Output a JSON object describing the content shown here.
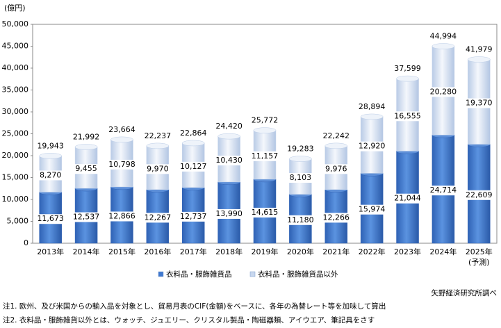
{
  "chart_data": {
    "type": "stacked-bar",
    "y_label": "(億円)",
    "categories": [
      "2013年",
      "2014年",
      "2015年",
      "2016年",
      "2017年",
      "2018年",
      "2019年",
      "2020年",
      "2021年",
      "2022年",
      "2023年",
      "2024年",
      "2025年"
    ],
    "forecast_note": "(予測)",
    "series": [
      {
        "name": "衣料品・服飾雑貨品",
        "color": "#3f78cf",
        "values": [
          11673,
          12537,
          12866,
          12267,
          12737,
          13990,
          14615,
          11180,
          12266,
          15974,
          21044,
          24714,
          22609
        ],
        "value_labels": [
          "11,673",
          "12,537",
          "12,866",
          "12,267",
          "12,737",
          "13,990",
          "14,615",
          "11,180",
          "12,266",
          "15,974",
          "21,044",
          "24,714",
          "22,609"
        ]
      },
      {
        "name": "衣料品・服飾雑貨品以外",
        "color": "#dce6f4",
        "values": [
          8270,
          9455,
          10798,
          9970,
          10127,
          10430,
          11157,
          8103,
          9976,
          12920,
          16555,
          20280,
          19370
        ],
        "value_labels": [
          "8,270",
          "9,455",
          "10,798",
          "9,970",
          "10,127",
          "10,430",
          "11,157",
          "8,103",
          "9,976",
          "12,920",
          "16,555",
          "20,280",
          "19,370"
        ]
      }
    ],
    "totals": {
      "values": [
        19943,
        21992,
        23664,
        22237,
        22864,
        24420,
        25772,
        19283,
        22242,
        28894,
        37599,
        44994,
        41979
      ],
      "value_labels": [
        "19,943",
        "21,992",
        "23,664",
        "22,237",
        "22,864",
        "24,420",
        "25,772",
        "19,283",
        "22,242",
        "28,894",
        "37,599",
        "44,994",
        "41,979"
      ]
    },
    "ylim": [
      0,
      50000
    ],
    "yticks": [
      0,
      {
        "value": 5000,
        "label": "5,000"
      },
      {
        "value": 10000,
        "label": "10,000"
      },
      {
        "value": 15000,
        "label": "15,000"
      },
      {
        "value": 20000,
        "label": "20,000"
      },
      {
        "value": 25000,
        "label": "25,000"
      },
      {
        "value": 30000,
        "label": "30,000"
      },
      {
        "value": 35000,
        "label": "35,000"
      },
      {
        "value": 40000,
        "label": "40,000"
      },
      {
        "value": 45000,
        "label": "45,000"
      },
      {
        "value": 50000,
        "label": "50,000"
      }
    ],
    "legend": "bottom",
    "source": "矢野経済研究所調べ",
    "notes": [
      "注1. 欧州、及び米国からの輸入品を対象とし、貿易月表のCIF(金額)をベースに、各年の為替レート等を加味して算出",
      "注2. 衣料品・服飾雑貨以外とは、ウォッチ、ジュエリー、クリスタル製品・陶磁器類、アイウエア、筆記具をさす"
    ]
  }
}
